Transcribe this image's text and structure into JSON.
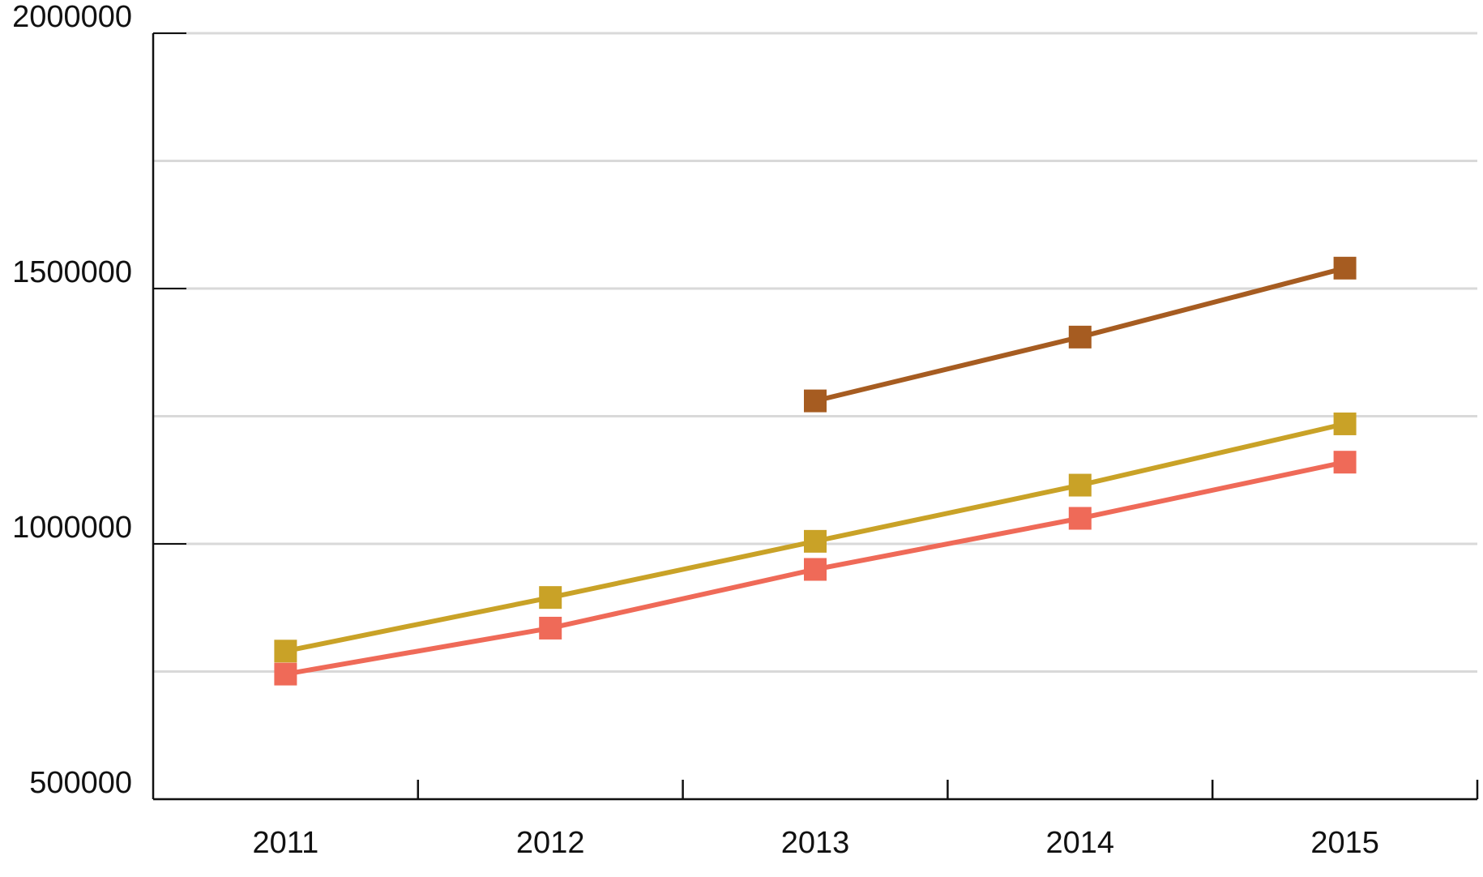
{
  "chart_data": {
    "type": "line",
    "categories": [
      "2011",
      "2012",
      "2013",
      "2014",
      "2015"
    ],
    "series": [
      {
        "color": "#a65c21",
        "values": [
          null,
          null,
          1280000,
          1405000,
          1540000
        ]
      },
      {
        "color": "#c9a227",
        "values": [
          790000,
          895000,
          1005000,
          1115000,
          1235000
        ]
      },
      {
        "color": "#ef6a58",
        "values": [
          745000,
          835000,
          950000,
          1050000,
          1160000
        ]
      }
    ],
    "ylim": [
      500000,
      2000000
    ],
    "yticks": [
      500000,
      1000000,
      1500000,
      2000000
    ],
    "yminor_ticks": [
      750000,
      1250000,
      1750000
    ],
    "grid": true
  }
}
